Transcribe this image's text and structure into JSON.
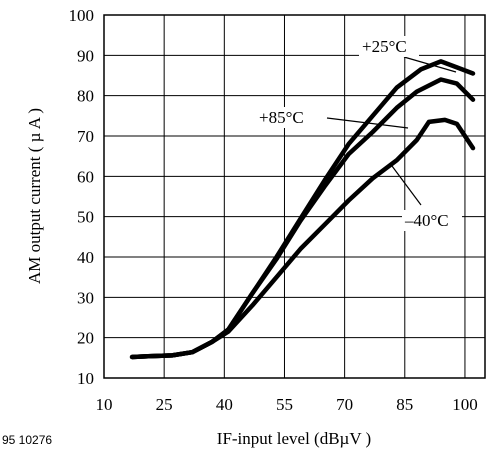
{
  "figure_id": "95 10276",
  "chart_data": {
    "type": "line",
    "title": "",
    "xlabel": "IF-input level (dBµV )",
    "ylabel": "AM output current ( µ A )",
    "xlim": [
      10,
      105
    ],
    "ylim": [
      10,
      100
    ],
    "x_ticks": [
      10,
      25,
      40,
      55,
      70,
      85,
      100
    ],
    "y_ticks": [
      10,
      20,
      30,
      40,
      50,
      60,
      70,
      80,
      90,
      100
    ],
    "grid": true,
    "series": [
      {
        "name": "+25°C",
        "x": [
          17,
          21,
          27,
          32,
          37,
          41,
          47,
          53,
          59,
          65,
          71,
          77,
          83,
          89,
          94,
          98,
          102
        ],
        "y": [
          15.2,
          15.4,
          15.6,
          16.4,
          19,
          22,
          31,
          40,
          49.5,
          59,
          68,
          75,
          82,
          86.5,
          88.5,
          87,
          85.5
        ]
      },
      {
        "name": "+85°C",
        "x": [
          17,
          21,
          27,
          32,
          37,
          41,
          47,
          53,
          59,
          65,
          71,
          77,
          83,
          88,
          94,
          98,
          102
        ],
        "y": [
          15.2,
          15.4,
          15.6,
          16.4,
          19,
          22,
          31,
          39.5,
          49,
          57.5,
          65.5,
          71,
          77,
          81,
          84,
          83,
          79
        ]
      },
      {
        "name": "–40°C",
        "x": [
          17,
          21,
          27,
          32,
          37,
          41,
          47,
          53,
          59,
          65,
          71,
          77,
          83,
          88,
          91,
          95,
          98,
          102
        ],
        "y": [
          15.2,
          15.4,
          15.6,
          16.4,
          19,
          21.5,
          28,
          35,
          42,
          48,
          54,
          59.5,
          64,
          69,
          73.5,
          74,
          73,
          67
        ]
      }
    ]
  }
}
